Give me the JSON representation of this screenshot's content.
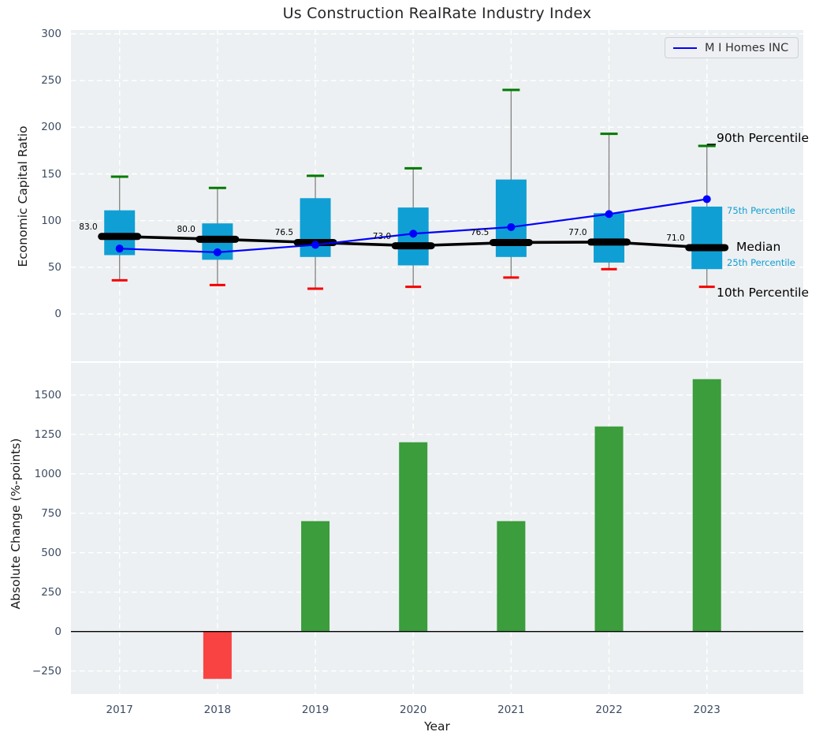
{
  "title": "Us Construction RealRate Industry Index",
  "legend": {
    "label": "M I Homes INC"
  },
  "annotations": {
    "p90": "90th Percentile",
    "p75": "75th Percentile",
    "median": "Median",
    "p25": "25th Percentile",
    "p10": "10th Percentile"
  },
  "colors": {
    "plot_bg": "#edf0f2",
    "grid": "#ffffff",
    "box_fill": "#0f9fd4",
    "whisker": "#828282",
    "cap_high": "#007a00",
    "cap_low": "#f50000",
    "median_line": "#000000",
    "company_line": "#0000ff",
    "bar_positive": "#3b9d3c",
    "bar_negative": "#f94242",
    "zero_line": "#000000",
    "tick_text": "#3d4c63"
  },
  "chart_data": [
    {
      "type": "boxplot+line",
      "title": "Us Construction RealRate Industry Index",
      "ylabel": "Economic Capital Ratio",
      "x": [
        "2017",
        "2018",
        "2019",
        "2020",
        "2021",
        "2022",
        "2023"
      ],
      "yticks": [
        0,
        50,
        100,
        150,
        200,
        250,
        300
      ],
      "ytick_labels": [
        "0",
        "50",
        "100",
        "150",
        "200",
        "250",
        "300"
      ],
      "ylim": [
        -51,
        304
      ],
      "grid": true,
      "legend_position": "upper right",
      "series": [
        {
          "name": "10th Percentile",
          "values": [
            36,
            31,
            27,
            29,
            39,
            48,
            29
          ]
        },
        {
          "name": "25th Percentile",
          "values": [
            63,
            58,
            61,
            52,
            61,
            55,
            48
          ]
        },
        {
          "name": "Median",
          "values": [
            83.0,
            80.0,
            76.5,
            73.0,
            76.5,
            77.0,
            71.0
          ]
        },
        {
          "name": "75th Percentile",
          "values": [
            111,
            97,
            124,
            114,
            144,
            108,
            115
          ]
        },
        {
          "name": "90th Percentile",
          "values": [
            147,
            135,
            148,
            156,
            240,
            193,
            180
          ]
        },
        {
          "name": "M I Homes INC",
          "values": [
            70,
            66,
            74,
            86,
            93,
            107,
            123
          ]
        }
      ],
      "median_labels": [
        "83.0",
        "80.0",
        "76.5",
        "73.0",
        "76.5",
        "77.0",
        "71.0"
      ]
    },
    {
      "type": "bar",
      "ylabel": "Absolute Change (%-points)",
      "xlabel": "Year",
      "categories": [
        "2017",
        "2018",
        "2019",
        "2020",
        "2021",
        "2022",
        "2023"
      ],
      "values": [
        0,
        -300,
        700,
        1200,
        700,
        1300,
        1600
      ],
      "yticks": [
        -250,
        0,
        250,
        500,
        750,
        1000,
        1250,
        1500
      ],
      "ytick_labels": [
        "−250",
        "0",
        "250",
        "500",
        "750",
        "1000",
        "1250",
        "1500"
      ],
      "ylim": [
        -400,
        1700
      ],
      "grid": true
    }
  ]
}
